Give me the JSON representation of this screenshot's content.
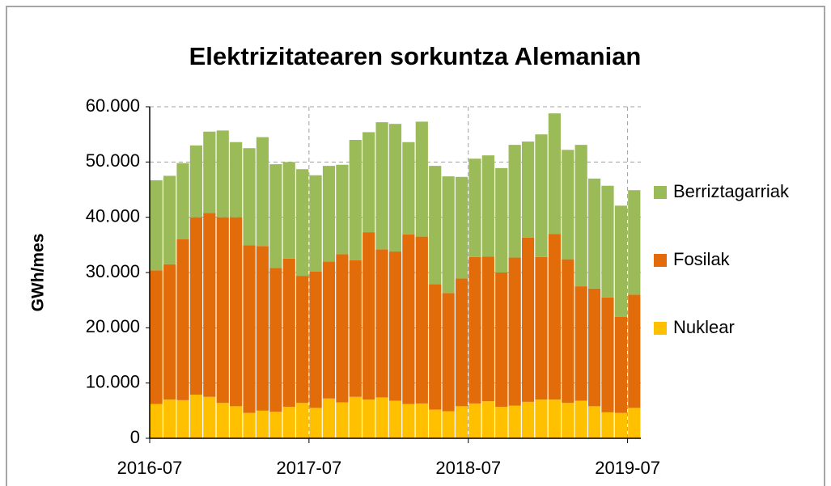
{
  "chart_data": {
    "type": "stacked_bar",
    "title": "Elektrizitatearen sorkuntza Alemanian",
    "y_label": "GWh/mes",
    "categories": [
      "2016-07",
      null,
      null,
      null,
      null,
      null,
      null,
      null,
      null,
      null,
      null,
      null,
      "2017-07",
      null,
      null,
      null,
      null,
      null,
      null,
      null,
      null,
      null,
      null,
      null,
      "2018-07",
      null,
      null,
      null,
      null,
      null,
      null,
      null,
      null,
      null,
      null,
      null,
      "2019-07"
    ],
    "series": [
      {
        "name": "Nuklear",
        "color": "#ffc000",
        "values": [
          6200,
          7000,
          6900,
          7900,
          7500,
          6400,
          5800,
          4600,
          5000,
          4800,
          5700,
          6400,
          5500,
          7200,
          6500,
          7500,
          7000,
          7400,
          6800,
          6200,
          6300,
          5200,
          4900,
          5800,
          6300,
          6700,
          5700,
          5900,
          6600,
          7000,
          7000,
          6400,
          6800,
          5800,
          4700,
          4600,
          5500
        ]
      },
      {
        "name": "Fosilak",
        "color": "#e36c0a",
        "values": [
          24200,
          24500,
          29100,
          32100,
          33300,
          33600,
          34200,
          30300,
          29800,
          26000,
          26800,
          23000,
          24700,
          24800,
          26800,
          24700,
          30300,
          26800,
          27000,
          30700,
          30200,
          22700,
          21400,
          23100,
          26500,
          26200,
          24300,
          26800,
          29700,
          25800,
          30000,
          26000,
          20700,
          21300,
          20800,
          17400,
          20500
        ]
      },
      {
        "name": "Berriztagarriak",
        "color": "#9bbb59",
        "values": [
          16300,
          16000,
          13800,
          13000,
          14700,
          15700,
          13600,
          17600,
          19700,
          18800,
          17500,
          19300,
          17400,
          17300,
          16200,
          21800,
          18100,
          23000,
          23100,
          16700,
          20800,
          21400,
          21100,
          18400,
          17800,
          18300,
          18900,
          20400,
          17400,
          22200,
          21800,
          19800,
          25600,
          19900,
          20200,
          20100,
          18900
        ]
      }
    ],
    "ylim": [
      0,
      60000
    ],
    "yticks": [
      0,
      {
        "value": 10000,
        "label": "10.000"
      },
      {
        "value": 20000,
        "label": "20.000"
      },
      {
        "value": 30000,
        "label": "30.000"
      },
      {
        "value": 40000,
        "label": "40.000"
      },
      {
        "value": 50000,
        "label": "50.000"
      },
      {
        "value": 60000,
        "label": "60.000"
      }
    ],
    "grid": true,
    "legend": "right"
  }
}
